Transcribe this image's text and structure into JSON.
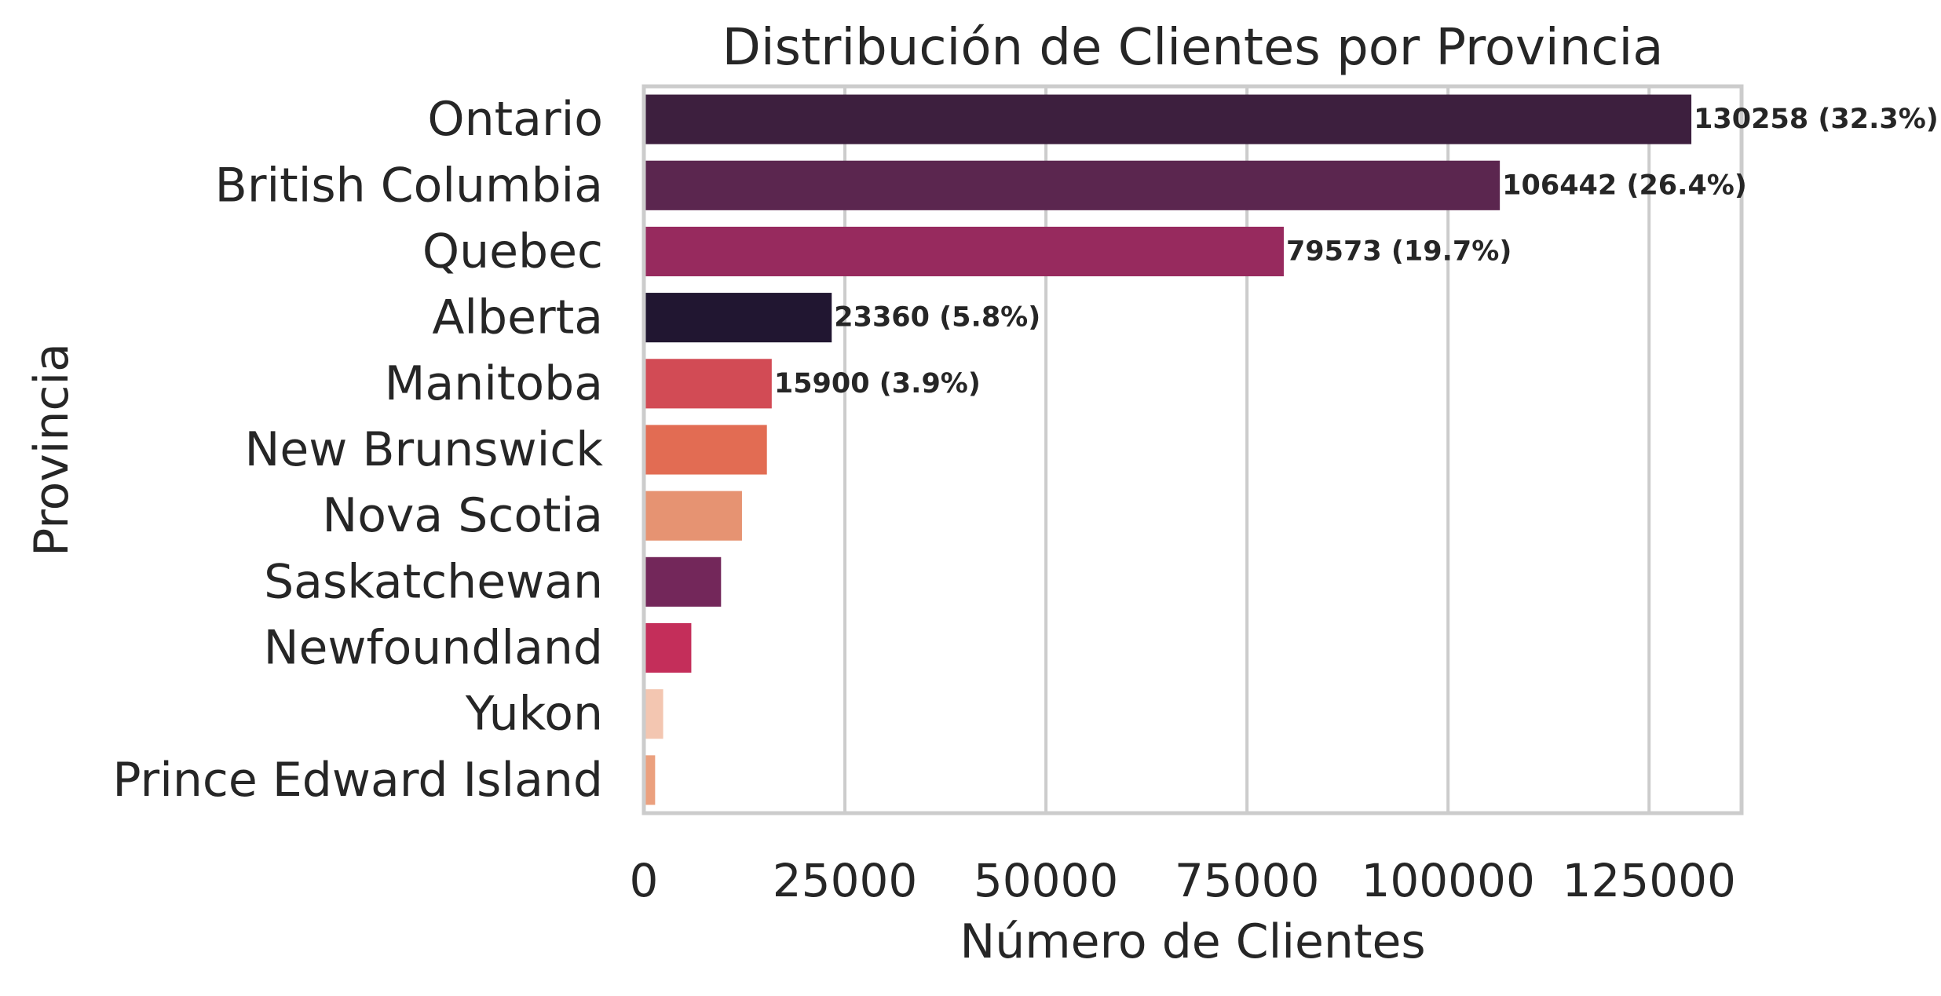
{
  "chart_data": {
    "type": "bar",
    "orientation": "horizontal",
    "title": "Distribución de Clientes por Provincia",
    "xlabel": "Número de Clientes",
    "ylabel": "Provincia",
    "xlim": [
      0,
      136500
    ],
    "xticks": [
      0,
      25000,
      50000,
      75000,
      100000,
      125000
    ],
    "xtick_labels": [
      "0",
      "25000",
      "50000",
      "75000",
      "100000",
      "125000"
    ],
    "grid": {
      "x": true,
      "y": false,
      "color": "#cccccc"
    },
    "categories": [
      "Ontario",
      "British Columbia",
      "Quebec",
      "Alberta",
      "Manitoba",
      "New Brunswick",
      "Nova Scotia",
      "Saskatchewan",
      "Newfoundland",
      "Yukon",
      "Prince Edward Island"
    ],
    "values": [
      130258,
      106442,
      79573,
      23360,
      15900,
      15300,
      12200,
      9600,
      5900,
      2400,
      1400
    ],
    "colors": [
      "#3d1f3e",
      "#5b264f",
      "#972a5e",
      "#211631",
      "#d24b55",
      "#e26c53",
      "#e69372",
      "#73275a",
      "#c42e5a",
      "#f3c6b1",
      "#eba07e"
    ],
    "data_labels": [
      "130258 (32.3%)",
      "106442 (26.4%)",
      "79573 (19.7%)",
      "23360 (5.8%)",
      "15900 (3.9%)",
      "",
      "",
      "",
      "",
      "",
      ""
    ]
  }
}
